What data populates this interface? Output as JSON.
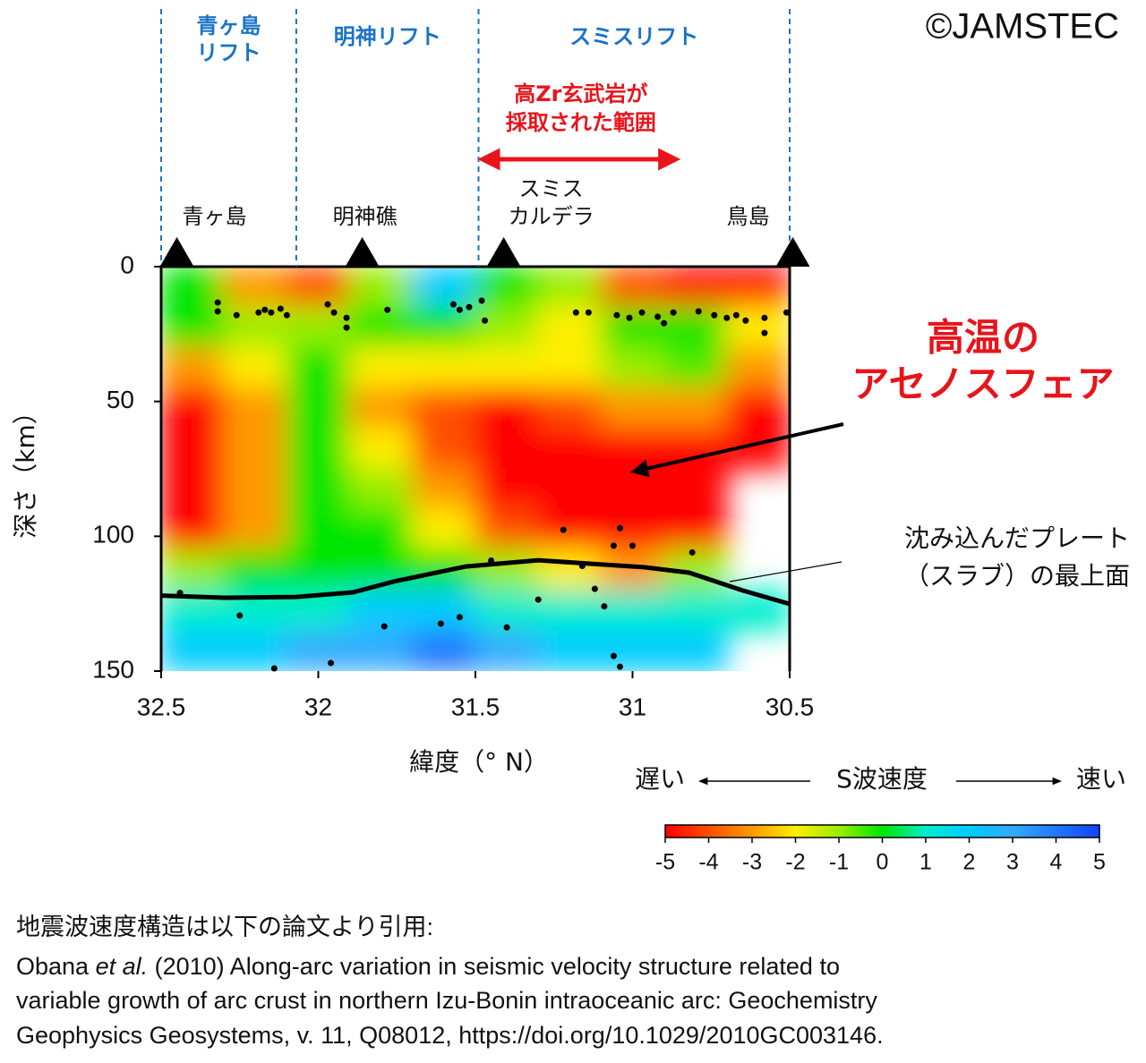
{
  "copyright": "©JAMSTEC",
  "chart_data": {
    "type": "heatmap",
    "xlabel": "緯度（° N）",
    "ylabel": "深さ（km）",
    "xlim": [
      32.5,
      30.5
    ],
    "xticks": [
      32.5,
      32,
      31.5,
      31,
      30.5
    ],
    "ylim": [
      0,
      150
    ],
    "yticks": [
      0,
      50,
      100,
      150
    ],
    "field": {
      "x": [
        32.4,
        32.2,
        32.0,
        31.8,
        31.6,
        31.4,
        31.2,
        31.0,
        30.8,
        30.6
      ],
      "y": [
        7.5,
        22.5,
        37.5,
        52.5,
        67.5,
        82.5,
        97.5,
        112.5,
        127.5,
        142.5
      ],
      "values": [
        [
          0,
          -3,
          -4,
          -1,
          2,
          0,
          -1,
          -4,
          -5,
          -5
        ],
        [
          0,
          -1,
          -1,
          0,
          0,
          -1,
          -2,
          0,
          0,
          -2
        ],
        [
          -3,
          -2,
          0,
          -2,
          -2,
          -2,
          -2,
          -1,
          -0.5,
          -3
        ],
        [
          -5,
          -3,
          0,
          -3,
          -4,
          -5,
          -4,
          -3,
          -3,
          -5
        ],
        [
          -5,
          -3,
          0,
          -2,
          -4,
          -5,
          -5,
          -5,
          -5,
          -5
        ],
        [
          -5,
          -3,
          0,
          -1,
          -3,
          -5,
          -5,
          -5,
          -5,
          null
        ],
        [
          -5,
          -3,
          0,
          0,
          -2,
          -4,
          -5,
          -5,
          -5,
          null
        ],
        [
          -1,
          0,
          0,
          0,
          0,
          -1,
          -2,
          -3,
          -1,
          null
        ],
        [
          1,
          1,
          1,
          2,
          2,
          1,
          1,
          1,
          1,
          1
        ],
        [
          2,
          2,
          3,
          3,
          4,
          3,
          2,
          2,
          2,
          null
        ]
      ]
    },
    "colorbar": {
      "label": "S波速度",
      "low_label": "遅い",
      "high_label": "速い",
      "clim": [
        -5,
        5
      ],
      "ticks": [
        -5,
        -4,
        -3,
        -2,
        -1,
        0,
        1,
        2,
        3,
        4,
        5
      ],
      "colors": [
        "#ff0000",
        "#ff5000",
        "#ff9900",
        "#ffee00",
        "#99ee00",
        "#00e600",
        "#00eecc",
        "#00ccff",
        "#33aaff",
        "#2277ff",
        "#1144ff"
      ]
    },
    "earthquakes": {
      "color": "#000000",
      "x": [
        32.32,
        32.32,
        32.26,
        32.19,
        32.17,
        32.15,
        32.12,
        32.1,
        31.97,
        31.95,
        31.91,
        31.91,
        31.78,
        31.57,
        31.55,
        31.52,
        31.48,
        31.47,
        31.18,
        31.14,
        31.05,
        31.01,
        30.97,
        30.92,
        30.9,
        30.87,
        30.79,
        30.74,
        30.7,
        30.67,
        30.64,
        30.58,
        30.58,
        30.51,
        31.22,
        31.04,
        31.06,
        31.0,
        30.81,
        31.45,
        31.16,
        31.12,
        31.3,
        31.09,
        32.44,
        32.25,
        31.79,
        31.61,
        31.55,
        31.4,
        31.06,
        31.04,
        31.96,
        32.14
      ],
      "y": [
        13.3,
        16.6,
        18,
        17,
        16,
        17,
        15.6,
        18,
        14,
        17,
        19,
        22.6,
        16,
        14,
        16,
        15,
        12.6,
        20,
        17,
        17,
        18,
        19,
        17,
        18.6,
        21,
        17,
        16.6,
        18,
        19,
        18,
        20,
        24.6,
        19,
        17,
        97.6,
        97,
        103.5,
        103.5,
        106,
        109,
        111,
        119.5,
        123.5,
        126,
        121,
        129.4,
        133.4,
        132.4,
        130,
        133.8,
        144.4,
        148.4,
        147,
        149
      ]
    },
    "slab": {
      "color": "#000000",
      "x": [
        32.5,
        32.3,
        32.07,
        31.89,
        31.76,
        31.53,
        31.3,
        31.13,
        30.96,
        30.82,
        30.65,
        30.5
      ],
      "y": [
        122,
        122.8,
        122.5,
        120.8,
        116.8,
        111.2,
        108.9,
        110.2,
        111.5,
        113.5,
        120.1,
        125.1
      ]
    },
    "rifts": {
      "color": "#1a73c7",
      "boundaries": [
        32.5,
        32.07,
        31.49,
        30.5
      ],
      "names": [
        [
          "青ヶ島",
          "リフト"
        ],
        [
          "明神リフト"
        ],
        [
          "スミスリフト"
        ]
      ]
    },
    "volcanoes": {
      "x": [
        32.45,
        31.86,
        31.41,
        30.49
      ],
      "names": [
        [
          "青ヶ島"
        ],
        [
          "明神礁"
        ],
        [
          "スミス",
          "カルデラ"
        ],
        [
          "鳥島"
        ]
      ]
    },
    "zr_range": {
      "x": [
        31.49,
        30.85
      ],
      "label": [
        "高Zr玄武岩が",
        "採取された範囲"
      ],
      "color": "#e8141b"
    },
    "hot_label": [
      "高温の",
      "アセノスフェア"
    ],
    "hot_color": "#e8141b",
    "slab_label": [
      "沈み込んだプレート",
      "（スラブ）の最上面"
    ]
  },
  "citation": {
    "intro": "地震波速度構造は以下の論文より引用:",
    "line1": [
      "Obana ",
      "et al.",
      " (2010) Along-arc variation in seismic velocity structure related to"
    ],
    "line2": "variable growth of arc crust in northern Izu-Bonin intraoceanic arc: Geochemistry",
    "line3": "Geophysics Geosystems, v. 11, Q08012, https://doi.org/10.1029/2010GC003146."
  }
}
